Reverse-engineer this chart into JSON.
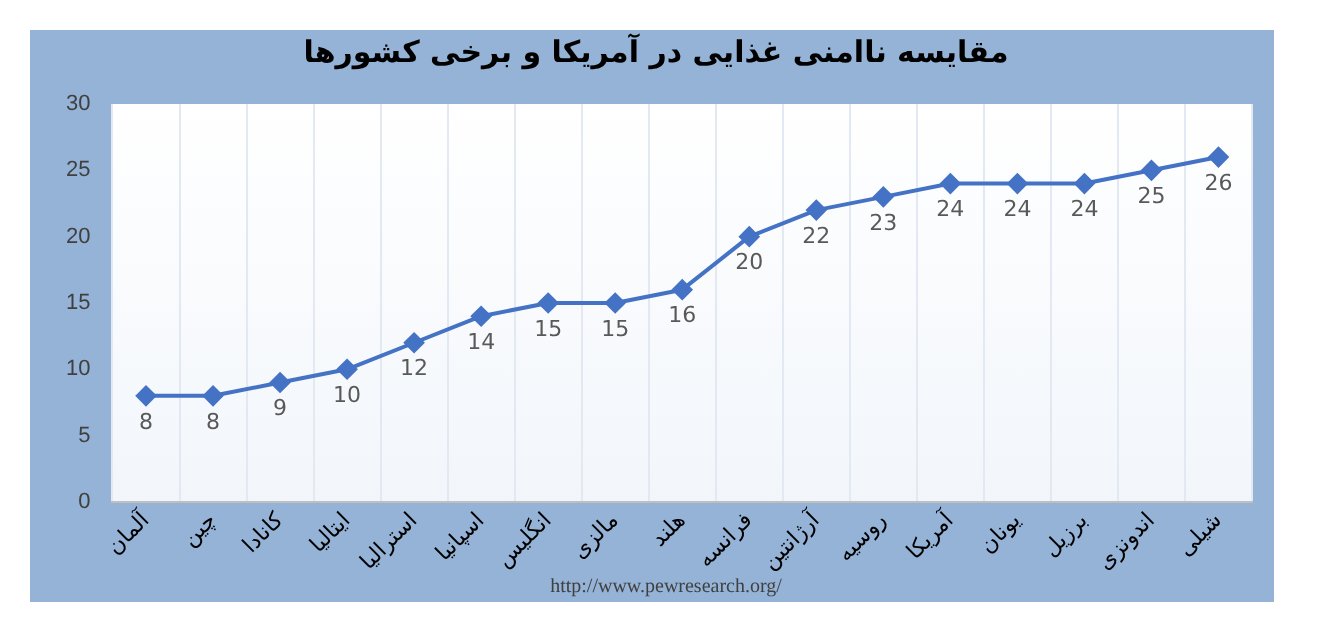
{
  "chart_data": {
    "type": "line",
    "title": "مقایسه ناامنی غذایی در آمریکا و برخی کشورها",
    "categories": [
      "آلمان",
      "چین",
      "کانادا",
      "ایتالیا",
      "استرالیا",
      "اسپانیا",
      "انگلیس",
      "مالزی",
      "هلند",
      "فرانسه",
      "آرژانتین",
      "روسیه",
      "آمریکا",
      "یونان",
      "برزیل",
      "اندونزی",
      "شیلی"
    ],
    "series": [
      {
        "color": "#4472c4",
        "values": [
          8,
          8,
          9,
          10,
          12,
          14,
          15,
          15,
          16,
          20,
          22,
          23,
          24,
          24,
          24,
          25,
          26
        ]
      }
    ],
    "ylim": [
      0,
      30
    ],
    "yticks": [
      0,
      5,
      10,
      15,
      20,
      25,
      30
    ],
    "grid": "x",
    "legend": false,
    "marker": "diamond",
    "line_style": "solid",
    "data_labels": true,
    "annotations": [
      "http://www.pewresearch.org/"
    ]
  }
}
